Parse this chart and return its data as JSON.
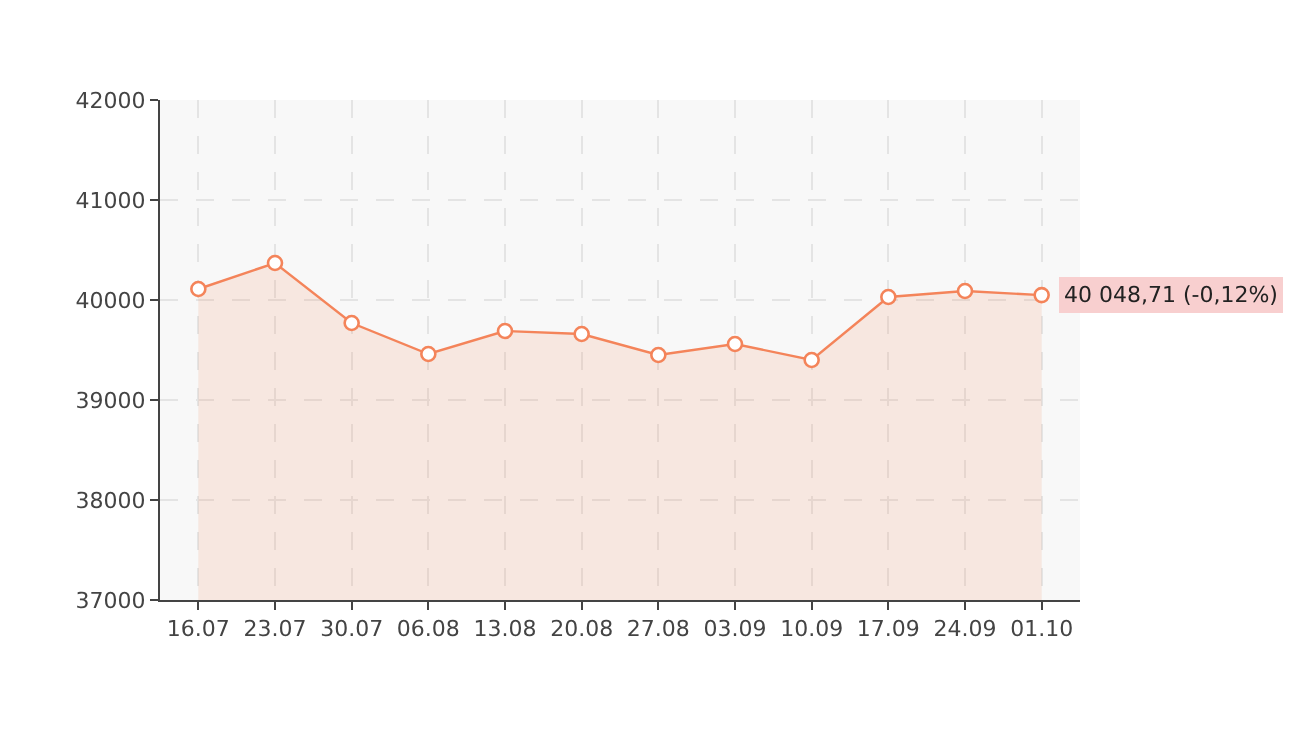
{
  "chart_data": {
    "type": "area",
    "categories": [
      "16.07",
      "23.07",
      "30.07",
      "06.08",
      "13.08",
      "20.08",
      "27.08",
      "03.09",
      "10.09",
      "17.09",
      "24.09",
      "01.10"
    ],
    "series": [
      {
        "color": "#f4845a",
        "values": [
          40110,
          40370,
          39770,
          39460,
          39690,
          39660,
          39450,
          39560,
          39400,
          40030,
          40090,
          40048.71
        ]
      }
    ],
    "ylim": [
      37000,
      42000
    ],
    "yticks": [
      37000,
      38000,
      39000,
      40000,
      41000,
      42000
    ],
    "annotations": [
      {
        "text": "40 048,71 (-0,12%)",
        "x": "01.10",
        "y": 40048.71
      }
    ],
    "grid": true,
    "marker": "circle",
    "line_style": "solid"
  }
}
